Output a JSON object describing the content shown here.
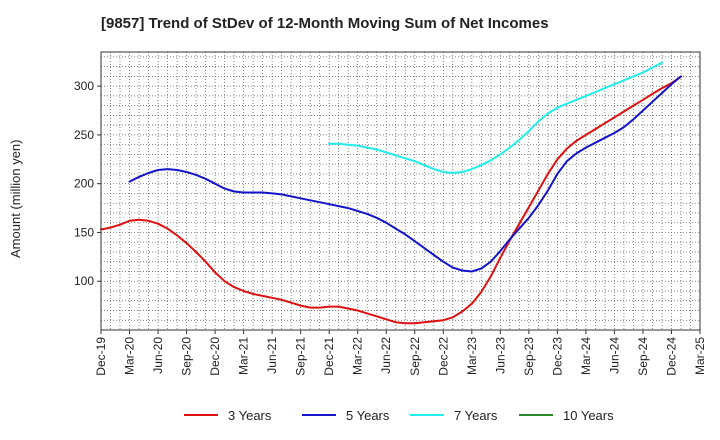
{
  "chart_data": {
    "type": "line",
    "title": "[9857]  Trend of StDev of 12-Month Moving Sum of Net Incomes",
    "xlabel": "",
    "ylabel": "Amount (million yen)",
    "x_ticks": [
      "Dec-19",
      "Mar-20",
      "Jun-20",
      "Sep-20",
      "Dec-20",
      "Mar-21",
      "Jun-21",
      "Sep-21",
      "Dec-21",
      "Mar-22",
      "Jun-22",
      "Sep-22",
      "Dec-22",
      "Mar-23",
      "Jun-23",
      "Sep-23",
      "Dec-23",
      "Mar-24",
      "Jun-24",
      "Sep-24",
      "Dec-24",
      "Mar-25"
    ],
    "y_ticks": [
      100,
      150,
      200,
      250,
      300
    ],
    "ylim": [
      50,
      335
    ],
    "grid": true,
    "legend_position": "bottom",
    "series": [
      {
        "name": "3 Years",
        "color": "#dd1111",
        "points": [
          [
            "Dec-19",
            153
          ],
          [
            "Jan-20",
            155
          ],
          [
            "Feb-20",
            158
          ],
          [
            "Mar-20",
            162
          ],
          [
            "Apr-20",
            163
          ],
          [
            "May-20",
            162
          ],
          [
            "Jun-20",
            159
          ],
          [
            "Jul-20",
            154
          ],
          [
            "Aug-20",
            147
          ],
          [
            "Sep-20",
            139
          ],
          [
            "Oct-20",
            130
          ],
          [
            "Nov-20",
            120
          ],
          [
            "Dec-20",
            109
          ],
          [
            "Jan-21",
            100
          ],
          [
            "Feb-21",
            94
          ],
          [
            "Mar-21",
            90
          ],
          [
            "Apr-21",
            87
          ],
          [
            "May-21",
            85
          ],
          [
            "Jun-21",
            83
          ],
          [
            "Jul-21",
            81
          ],
          [
            "Aug-21",
            78
          ],
          [
            "Sep-21",
            75
          ],
          [
            "Oct-21",
            73
          ],
          [
            "Nov-21",
            73
          ],
          [
            "Dec-21",
            74
          ],
          [
            "Jan-22",
            74
          ],
          [
            "Feb-22",
            72
          ],
          [
            "Mar-22",
            70
          ],
          [
            "Apr-22",
            67
          ],
          [
            "May-22",
            64
          ],
          [
            "Jun-22",
            61
          ],
          [
            "Jul-22",
            58
          ],
          [
            "Aug-22",
            57
          ],
          [
            "Sep-22",
            57
          ],
          [
            "Oct-22",
            58
          ],
          [
            "Nov-22",
            59
          ],
          [
            "Dec-22",
            60
          ],
          [
            "Jan-23",
            63
          ],
          [
            "Feb-23",
            69
          ],
          [
            "Mar-23",
            77
          ],
          [
            "Apr-23",
            89
          ],
          [
            "May-23",
            105
          ],
          [
            "Jun-23",
            124
          ],
          [
            "Jul-23",
            142
          ],
          [
            "Aug-23",
            159
          ],
          [
            "Sep-23",
            176
          ],
          [
            "Oct-23",
            193
          ],
          [
            "Nov-23",
            210
          ],
          [
            "Dec-23",
            225
          ],
          [
            "Jan-24",
            236
          ],
          [
            "Feb-24",
            244
          ],
          [
            "Mar-24",
            250
          ],
          [
            "Apr-24",
            256
          ],
          [
            "May-24",
            262
          ],
          [
            "Jun-24",
            268
          ],
          [
            "Jul-24",
            274
          ],
          [
            "Aug-24",
            280
          ],
          [
            "Sep-24",
            286
          ],
          [
            "Oct-24",
            292
          ],
          [
            "Nov-24",
            298
          ],
          [
            "Dec-24",
            303
          ],
          [
            "Jan-25",
            310
          ]
        ]
      },
      {
        "name": "5 Years",
        "color": "#1414c8",
        "points": [
          [
            "Mar-20",
            202
          ],
          [
            "Apr-20",
            207
          ],
          [
            "May-20",
            211
          ],
          [
            "Jun-20",
            214
          ],
          [
            "Jul-20",
            215
          ],
          [
            "Aug-20",
            214
          ],
          [
            "Sep-20",
            212
          ],
          [
            "Oct-20",
            209
          ],
          [
            "Nov-20",
            205
          ],
          [
            "Dec-20",
            200
          ],
          [
            "Jan-21",
            195
          ],
          [
            "Feb-21",
            192
          ],
          [
            "Mar-21",
            191
          ],
          [
            "Apr-21",
            191
          ],
          [
            "May-21",
            191
          ],
          [
            "Jun-21",
            190
          ],
          [
            "Jul-21",
            189
          ],
          [
            "Aug-21",
            187
          ],
          [
            "Sep-21",
            185
          ],
          [
            "Oct-21",
            183
          ],
          [
            "Nov-21",
            181
          ],
          [
            "Dec-21",
            179
          ],
          [
            "Jan-22",
            177
          ],
          [
            "Feb-22",
            175
          ],
          [
            "Mar-22",
            172
          ],
          [
            "Apr-22",
            169
          ],
          [
            "May-22",
            165
          ],
          [
            "Jun-22",
            160
          ],
          [
            "Jul-22",
            154
          ],
          [
            "Aug-22",
            148
          ],
          [
            "Sep-22",
            141
          ],
          [
            "Oct-22",
            134
          ],
          [
            "Nov-22",
            127
          ],
          [
            "Dec-22",
            120
          ],
          [
            "Jan-23",
            114
          ],
          [
            "Feb-23",
            111
          ],
          [
            "Mar-23",
            110
          ],
          [
            "Apr-23",
            113
          ],
          [
            "May-23",
            120
          ],
          [
            "Jun-23",
            131
          ],
          [
            "Jul-23",
            143
          ],
          [
            "Aug-23",
            154
          ],
          [
            "Sep-23",
            165
          ],
          [
            "Oct-23",
            178
          ],
          [
            "Nov-23",
            193
          ],
          [
            "Dec-23",
            210
          ],
          [
            "Jan-24",
            223
          ],
          [
            "Feb-24",
            231
          ],
          [
            "Mar-24",
            237
          ],
          [
            "Apr-24",
            242
          ],
          [
            "May-24",
            247
          ],
          [
            "Jun-24",
            252
          ],
          [
            "Jul-24",
            258
          ],
          [
            "Aug-24",
            266
          ],
          [
            "Sep-24",
            275
          ],
          [
            "Oct-24",
            284
          ],
          [
            "Nov-24",
            293
          ],
          [
            "Dec-24",
            302
          ],
          [
            "Jan-25",
            310
          ]
        ]
      },
      {
        "name": "7 Years",
        "color": "#22eeee",
        "points": [
          [
            "Dec-21",
            241
          ],
          [
            "Jan-22",
            241
          ],
          [
            "Feb-22",
            240
          ],
          [
            "Mar-22",
            239
          ],
          [
            "Apr-22",
            237
          ],
          [
            "May-22",
            235
          ],
          [
            "Jun-22",
            232
          ],
          [
            "Jul-22",
            229
          ],
          [
            "Aug-22",
            226
          ],
          [
            "Sep-22",
            223
          ],
          [
            "Oct-22",
            219
          ],
          [
            "Nov-22",
            215
          ],
          [
            "Dec-22",
            212
          ],
          [
            "Jan-23",
            211
          ],
          [
            "Feb-23",
            212
          ],
          [
            "Mar-23",
            215
          ],
          [
            "Apr-23",
            219
          ],
          [
            "May-23",
            224
          ],
          [
            "Jun-23",
            230
          ],
          [
            "Jul-23",
            237
          ],
          [
            "Aug-23",
            245
          ],
          [
            "Sep-23",
            254
          ],
          [
            "Oct-23",
            264
          ],
          [
            "Nov-23",
            272
          ],
          [
            "Dec-23",
            278
          ],
          [
            "Jan-24",
            282
          ],
          [
            "Feb-24",
            286
          ],
          [
            "Mar-24",
            290
          ],
          [
            "Apr-24",
            294
          ],
          [
            "May-24",
            298
          ],
          [
            "Jun-24",
            302
          ],
          [
            "Jul-24",
            306
          ],
          [
            "Aug-24",
            310
          ],
          [
            "Sep-24",
            314
          ],
          [
            "Oct-24",
            319
          ],
          [
            "Nov-24",
            324
          ]
        ]
      },
      {
        "name": "10 Years",
        "color": "#2a8a2a",
        "points": []
      }
    ]
  }
}
